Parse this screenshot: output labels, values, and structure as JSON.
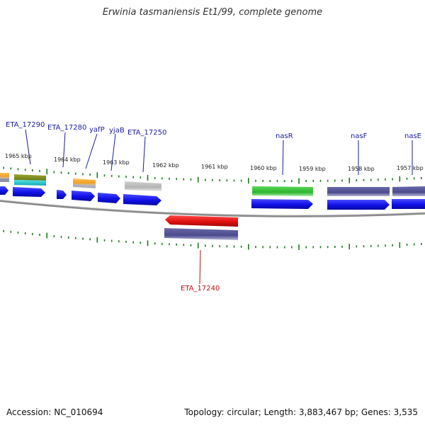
{
  "title": "Erwinia tasmaniensis Et1/99, complete genome",
  "footer": {
    "accession": "Accession: NC_010694",
    "summary": "Topology: circular; Length: 3,883,467 bp; Genes: 3,535"
  },
  "colors": {
    "backbone": "#8a8a8a",
    "tick": "#1f7a1f",
    "label_forward": "#1a1aa6",
    "label_reverse": "#c01010",
    "cds": "#1010e8",
    "red_cds": "#e01010",
    "green_feature": "#2db52d",
    "navy_feature": "#4a4a8c",
    "orange_feature": "#f5a020",
    "cyan_feature": "#20c8d0",
    "olive_feature": "#7a8a20",
    "gray_feature": "#b4b4b4"
  },
  "tick_labels": [
    "1965 kbp",
    "1964 kbp",
    "1963 kbp",
    "1962 kbp",
    "1961 kbp",
    "1960 kbp",
    "1959 kbp",
    "1958 kbp",
    "1957 kbp"
  ],
  "gene_labels_forward": [
    "ETA_17290",
    "ETA_17280",
    "yafP",
    "yjaB",
    "ETA_17250",
    "nasR",
    "nasF",
    "nasE"
  ],
  "gene_labels_reverse": [
    "ETA_17240"
  ]
}
